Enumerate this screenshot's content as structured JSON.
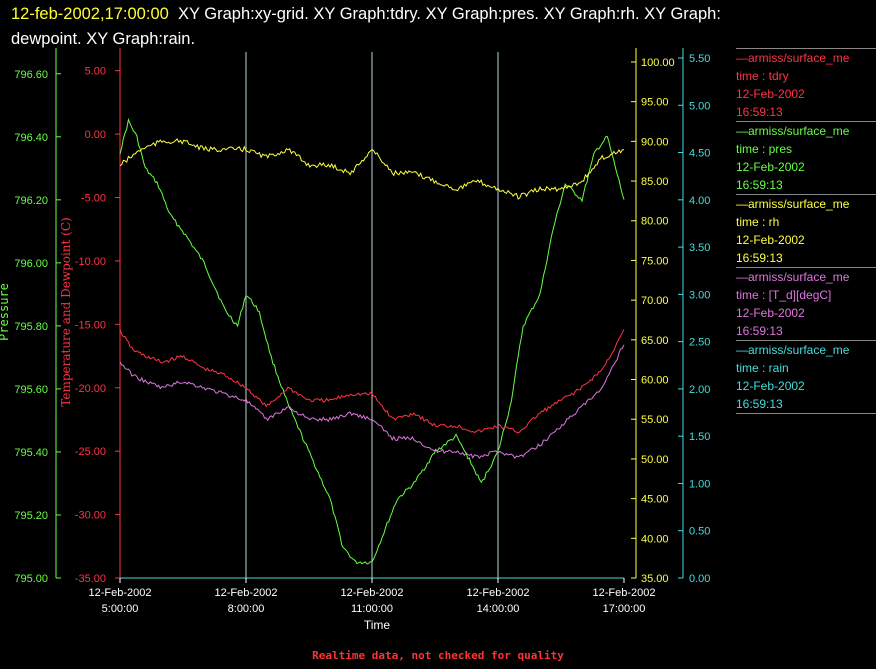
{
  "header": {
    "timestamp": "12-feb-2002,17:00:00",
    "graphs_line1": "XY Graph:xy-grid.  XY Graph:tdry.  XY Graph:pres.  XY Graph:rh.  XY Graph:",
    "graphs_line2": "dewpoint.  XY Graph:rain."
  },
  "footer": "Realtime data, not checked for quality",
  "legend": [
    {
      "source": "—armiss/surface_me",
      "field": "time : tdry",
      "date": "12-Feb-2002",
      "time": "16:59:13",
      "color": "#ff3344"
    },
    {
      "source": "—armiss/surface_me",
      "field": "time : pres",
      "date": "12-Feb-2002",
      "time": "16:59:13",
      "color": "#66ff44"
    },
    {
      "source": "—armiss/surface_me",
      "field": "time : rh",
      "date": "12-Feb-2002",
      "time": "16:59:13",
      "color": "#ffff44"
    },
    {
      "source": "—armiss/surface_me",
      "field": "time : [T_d][degC]",
      "date": "12-Feb-2002",
      "time": "16:59:13",
      "color": "#dd77dd"
    },
    {
      "source": "—armiss/surface_me",
      "field": "time : rain",
      "date": "12-Feb-2002",
      "time": "16:59:13",
      "color": "#44dddd"
    }
  ],
  "chart_data": {
    "type": "line",
    "xlabel": "Time",
    "x_ticks": [
      {
        "date": "12-Feb-2002",
        "time": "5:00:00"
      },
      {
        "date": "12-Feb-2002",
        "time": "8:00:00"
      },
      {
        "date": "12-Feb-2002",
        "time": "11:00:00"
      },
      {
        "date": "12-Feb-2002",
        "time": "14:00:00"
      },
      {
        "date": "12-Feb-2002",
        "time": "17:00:00"
      }
    ],
    "xlim_hours": [
      5,
      17
    ],
    "grid_vertical": true,
    "axes": {
      "pressure": {
        "label": "Pressure",
        "ticks": [
          "796.60",
          "796.40",
          "796.20",
          "796.00",
          "795.80",
          "795.60",
          "795.40",
          "795.20",
          "795.00"
        ],
        "lim": [
          795.0,
          796.65
        ],
        "color": "#66ff44"
      },
      "temperature": {
        "label": "Temperature and Dewpoint (C)",
        "ticks": [
          "5.00",
          "0.00",
          "-5.00",
          "-10.00",
          "-15.00",
          "-20.00",
          "-25.00",
          "-30.00",
          "-35.00"
        ],
        "lim": [
          -35,
          6
        ],
        "color": "#ff3344"
      },
      "rh": {
        "label": "",
        "ticks": [
          "100.00",
          "95.00",
          "90.00",
          "85.00",
          "80.00",
          "75.00",
          "70.00",
          "65.00",
          "60.00",
          "55.00",
          "50.00",
          "45.00",
          "40.00",
          "35.00"
        ],
        "lim": [
          35,
          100.5
        ],
        "color": "#ffff44"
      },
      "rain": {
        "label": "",
        "ticks": [
          "5.50",
          "5.00",
          "4.50",
          "4.00",
          "3.50",
          "3.00",
          "2.50",
          "2.00",
          "1.50",
          "1.00",
          "0.50",
          "0.00"
        ],
        "lim": [
          0,
          5.5
        ],
        "color": "#44dddd"
      }
    },
    "series": [
      {
        "axis": "pressure",
        "color": "#66ff44",
        "x": [
          5,
          5.2,
          5.4,
          5.6,
          5.9,
          6.2,
          6.5,
          7.0,
          7.5,
          7.8,
          8.0,
          8.3,
          8.6,
          9.0,
          9.5,
          10.0,
          10.3,
          10.6,
          11.0,
          11.3,
          11.6,
          12.0,
          12.5,
          13.0,
          13.3,
          13.6,
          14.0,
          14.3,
          14.6,
          15.0,
          15.3,
          15.6,
          16.0,
          16.3,
          16.6,
          16.9,
          17
        ],
        "y": [
          796.35,
          796.45,
          796.4,
          796.3,
          796.25,
          796.15,
          796.1,
          796.0,
          795.85,
          795.8,
          795.9,
          795.85,
          795.7,
          795.55,
          795.4,
          795.25,
          795.1,
          795.05,
          795.05,
          795.15,
          795.25,
          795.3,
          795.4,
          795.45,
          795.38,
          795.3,
          795.4,
          795.55,
          795.8,
          795.9,
          796.1,
          796.25,
          796.2,
          796.35,
          796.4,
          796.25,
          796.2
        ]
      },
      {
        "axis": "temperature",
        "color": "#ff3344",
        "x": [
          5,
          5.3,
          5.6,
          6.0,
          6.5,
          7.0,
          7.5,
          8.0,
          8.5,
          9.0,
          9.5,
          10.0,
          10.5,
          11.0,
          11.5,
          12.0,
          12.5,
          13.0,
          13.5,
          14.0,
          14.5,
          15.0,
          15.5,
          16.0,
          16.5,
          17
        ],
        "y": [
          -15.5,
          -17,
          -17.5,
          -18,
          -17.5,
          -18.5,
          -19,
          -20,
          -21.5,
          -20,
          -21,
          -21,
          -20.5,
          -20.5,
          -22.5,
          -22,
          -23,
          -23,
          -23.5,
          -23,
          -23.5,
          -22,
          -21,
          -20,
          -18.5,
          -15.5
        ]
      },
      {
        "axis": "temperature",
        "color": "#dd77dd",
        "x": [
          5,
          5.3,
          5.6,
          6.0,
          6.5,
          7.0,
          7.5,
          8.0,
          8.5,
          9.0,
          9.5,
          10.0,
          10.5,
          11.0,
          11.5,
          12.0,
          12.5,
          13.0,
          13.5,
          14.0,
          14.5,
          15.0,
          15.5,
          16.0,
          16.5,
          17
        ],
        "y": [
          -18,
          -19,
          -19.5,
          -20,
          -19.5,
          -20,
          -20.5,
          -21,
          -22.5,
          -21.5,
          -22.5,
          -22.5,
          -22,
          -22.5,
          -24,
          -24,
          -25,
          -25,
          -25.5,
          -25,
          -25.5,
          -24.5,
          -23,
          -21.5,
          -20,
          -16.5
        ]
      },
      {
        "axis": "rh",
        "color": "#ffff44",
        "x": [
          5,
          5.5,
          6.0,
          6.5,
          7.0,
          7.5,
          8.0,
          8.5,
          9.0,
          9.5,
          10.0,
          10.5,
          11.0,
          11.5,
          12.0,
          12.5,
          13.0,
          13.5,
          14.0,
          14.5,
          15.0,
          15.5,
          16.0,
          16.5,
          17
        ],
        "y": [
          87,
          89,
          90,
          90,
          89,
          89,
          89,
          88,
          89,
          87,
          87,
          86,
          89,
          86,
          86,
          85,
          84,
          85,
          84,
          83,
          84,
          84,
          85,
          88,
          89
        ]
      },
      {
        "axis": "rain",
        "color": "#44dddd",
        "x": [
          5,
          17
        ],
        "y": [
          0,
          0
        ]
      }
    ]
  }
}
